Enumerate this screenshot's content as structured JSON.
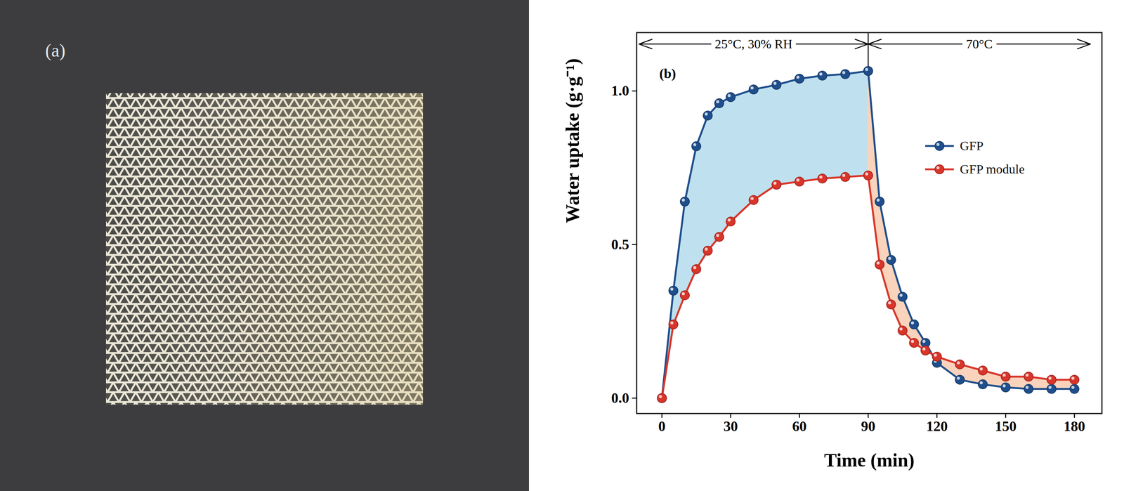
{
  "image_panel": {
    "label": "(a)"
  },
  "chart_data": {
    "type": "line",
    "panel_label": "(b)",
    "x_label": "Time (min)",
    "y_label": "Water uptake (g·g⁻¹)",
    "x": [
      0,
      5,
      10,
      15,
      20,
      25,
      30,
      40,
      50,
      60,
      70,
      80,
      90,
      95,
      100,
      105,
      110,
      115,
      120,
      130,
      140,
      150,
      160,
      170,
      180
    ],
    "series": [
      {
        "name": "GFP",
        "color": "#1f4e8c",
        "marker": "circle",
        "values": [
          0,
          0.35,
          0.64,
          0.82,
          0.92,
          0.96,
          0.98,
          1.005,
          1.02,
          1.04,
          1.05,
          1.055,
          1.065,
          0.64,
          0.45,
          0.33,
          0.24,
          0.18,
          0.115,
          0.06,
          0.045,
          0.035,
          0.03,
          0.03,
          0.03
        ]
      },
      {
        "name": "GFP module",
        "color": "#d9352a",
        "marker": "circle",
        "values": [
          0,
          0.24,
          0.335,
          0.42,
          0.48,
          0.525,
          0.575,
          0.645,
          0.695,
          0.705,
          0.715,
          0.72,
          0.725,
          0.435,
          0.305,
          0.22,
          0.18,
          0.155,
          0.135,
          0.11,
          0.09,
          0.07,
          0.07,
          0.06,
          0.06
        ]
      }
    ],
    "annotations": [
      {
        "label": "25°C, 30% RH",
        "start": -10,
        "end": 90,
        "color": "#bfe0ee"
      },
      {
        "label": "70°C",
        "start": 90,
        "end": 187,
        "color": "#f9d3bb"
      }
    ],
    "xlim": [
      -11,
      192
    ],
    "xticks": [
      0,
      30,
      60,
      90,
      120,
      150,
      180
    ],
    "ylim": [
      -0.05,
      1.19
    ],
    "yticks": [
      {
        "value": 0,
        "label": "0.0"
      },
      {
        "value": 0.5,
        "label": "0.5"
      },
      {
        "value": 1,
        "label": "1.0"
      }
    ],
    "grid": false,
    "legend": "right"
  }
}
